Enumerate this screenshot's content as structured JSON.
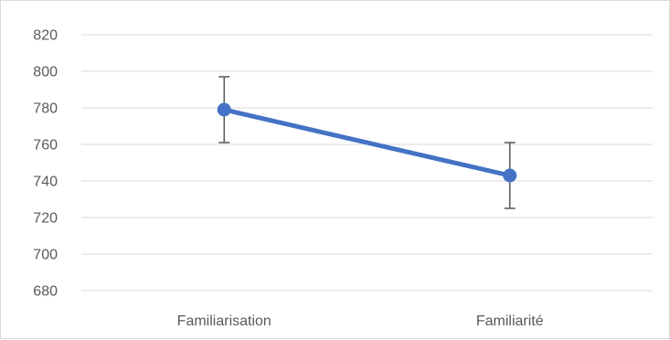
{
  "chart_data": {
    "type": "line",
    "categories": [
      "Familiarisation",
      "Familiarité"
    ],
    "series": [
      {
        "values": [
          779,
          743
        ],
        "error_low": [
          761,
          725
        ],
        "error_high": [
          797,
          761
        ],
        "color": "#4472c4"
      }
    ],
    "y_ticks": [
      680,
      700,
      720,
      740,
      760,
      780,
      800,
      820
    ],
    "ylim": [
      680,
      820
    ],
    "grid": true,
    "legend": "none",
    "gridline_color": "#d9d9d9",
    "error_bar_color": "#595959",
    "tick_label_color": "#595959"
  }
}
